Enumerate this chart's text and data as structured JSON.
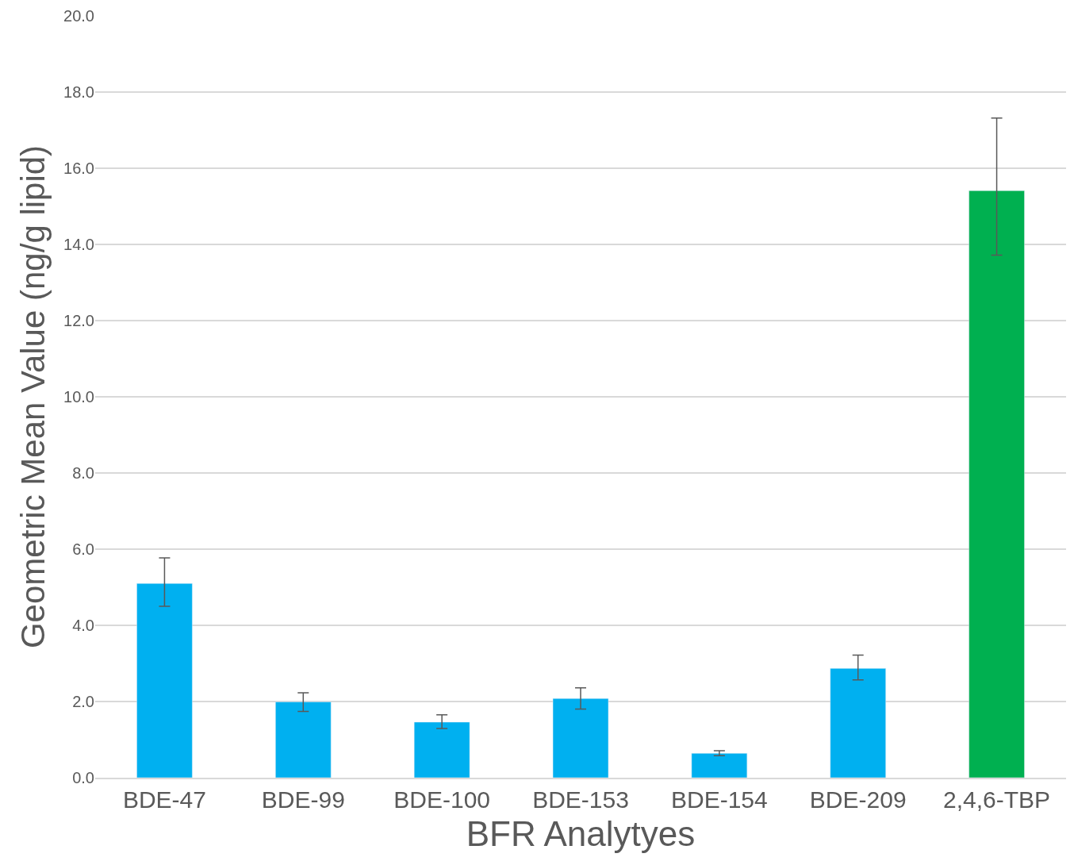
{
  "chart_data": {
    "type": "bar",
    "xlabel": "BFR Analytyes",
    "ylabel": "Geometric Mean Value (ng/g lipid)",
    "categories": [
      "BDE-47",
      "BDE-99",
      "BDE-100",
      "BDE-153",
      "BDE-154",
      "BDE-209",
      "2,4,6-TBP"
    ],
    "values": [
      5.1,
      1.99,
      1.46,
      2.08,
      0.64,
      2.87,
      15.41
    ],
    "colors": [
      "#00b0f0",
      "#00b0f0",
      "#00b0f0",
      "#00b0f0",
      "#00b0f0",
      "#00b0f0",
      "#00b050"
    ],
    "errors": [
      [
        4.5,
        5.77
      ],
      [
        1.74,
        2.23
      ],
      [
        1.29,
        1.65
      ],
      [
        1.8,
        2.36
      ],
      [
        0.58,
        0.71
      ],
      [
        2.57,
        3.22
      ],
      [
        13.72,
        17.32
      ]
    ],
    "ylim": [
      0,
      20
    ],
    "yticks": [
      {
        "value": 0,
        "label": "0.0"
      },
      {
        "value": 2,
        "label": "2.0"
      },
      {
        "value": 4,
        "label": "4.0"
      },
      {
        "value": 6,
        "label": "6.0"
      },
      {
        "value": 8,
        "label": "8.0"
      },
      {
        "value": 10,
        "label": "10.0"
      },
      {
        "value": 12,
        "label": "12.0"
      },
      {
        "value": 14,
        "label": "14.0"
      },
      {
        "value": 16,
        "label": "16.0"
      },
      {
        "value": 18,
        "label": "18.0"
      },
      {
        "value": 20,
        "label": "20.0"
      }
    ],
    "grid": "y"
  }
}
